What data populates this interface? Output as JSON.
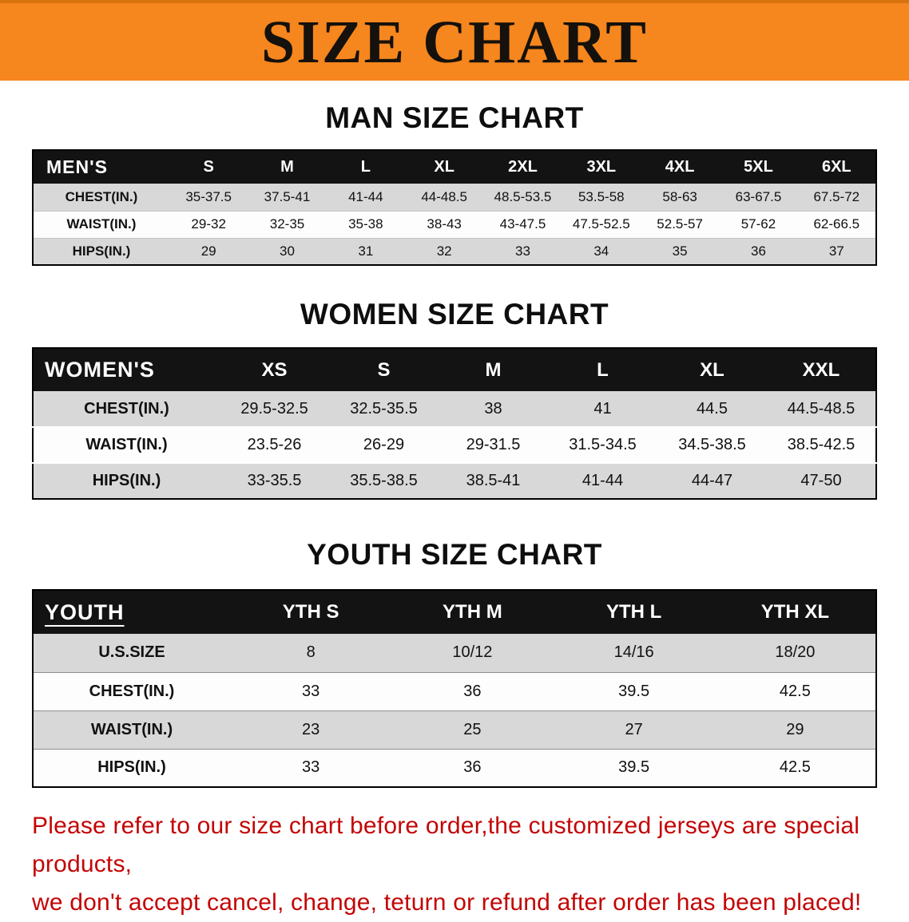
{
  "banner": {
    "title": "SIZE CHART"
  },
  "colors": {
    "banner_bg": "#f6861e",
    "table_header_bg": "#131313",
    "table_stripe_bg": "#d8d8d8",
    "note_text": "#c30505"
  },
  "chart_data": [
    {
      "type": "table",
      "title": "MAN SIZE CHART",
      "columns": [
        "MEN'S",
        "S",
        "M",
        "L",
        "XL",
        "2XL",
        "3XL",
        "4XL",
        "5XL",
        "6XL"
      ],
      "rows": [
        [
          "CHEST(IN.)",
          "35-37.5",
          "37.5-41",
          "41-44",
          "44-48.5",
          "48.5-53.5",
          "53.5-58",
          "58-63",
          "63-67.5",
          "67.5-72"
        ],
        [
          "WAIST(IN.)",
          "29-32",
          "32-35",
          "35-38",
          "38-43",
          "43-47.5",
          "47.5-52.5",
          "52.5-57",
          "57-62",
          "62-66.5"
        ],
        [
          "HIPS(IN.)",
          "29",
          "30",
          "31",
          "32",
          "33",
          "34",
          "35",
          "36",
          "37"
        ]
      ]
    },
    {
      "type": "table",
      "title": "WOMEN SIZE CHART",
      "columns": [
        "WOMEN'S",
        "XS",
        "S",
        "M",
        "L",
        "XL",
        "XXL"
      ],
      "rows": [
        [
          "CHEST(IN.)",
          "29.5-32.5",
          "32.5-35.5",
          "38",
          "41",
          "44.5",
          "44.5-48.5"
        ],
        [
          "WAIST(IN.)",
          "23.5-26",
          "26-29",
          "29-31.5",
          "31.5-34.5",
          "34.5-38.5",
          "38.5-42.5"
        ],
        [
          "HIPS(IN.)",
          "33-35.5",
          "35.5-38.5",
          "38.5-41",
          "41-44",
          "44-47",
          "47-50"
        ]
      ]
    },
    {
      "type": "table",
      "title": "YOUTH SIZE CHART",
      "columns": [
        "YOUTH",
        "YTH S",
        "YTH M",
        "YTH L",
        "YTH XL"
      ],
      "rows": [
        [
          "U.S.SIZE",
          "8",
          "10/12",
          "14/16",
          "18/20"
        ],
        [
          "CHEST(IN.)",
          "33",
          "36",
          "39.5",
          "42.5"
        ],
        [
          "WAIST(IN.)",
          "23",
          "25",
          "27",
          "29"
        ],
        [
          "HIPS(IN.)",
          "33",
          "36",
          "39.5",
          "42.5"
        ]
      ]
    }
  ],
  "footer_note": {
    "lines": [
      "Please refer to our size chart before order,the customized jerseys are special products,",
      "we don't accept cancel, change, teturn or refund after order has been placed!"
    ]
  }
}
